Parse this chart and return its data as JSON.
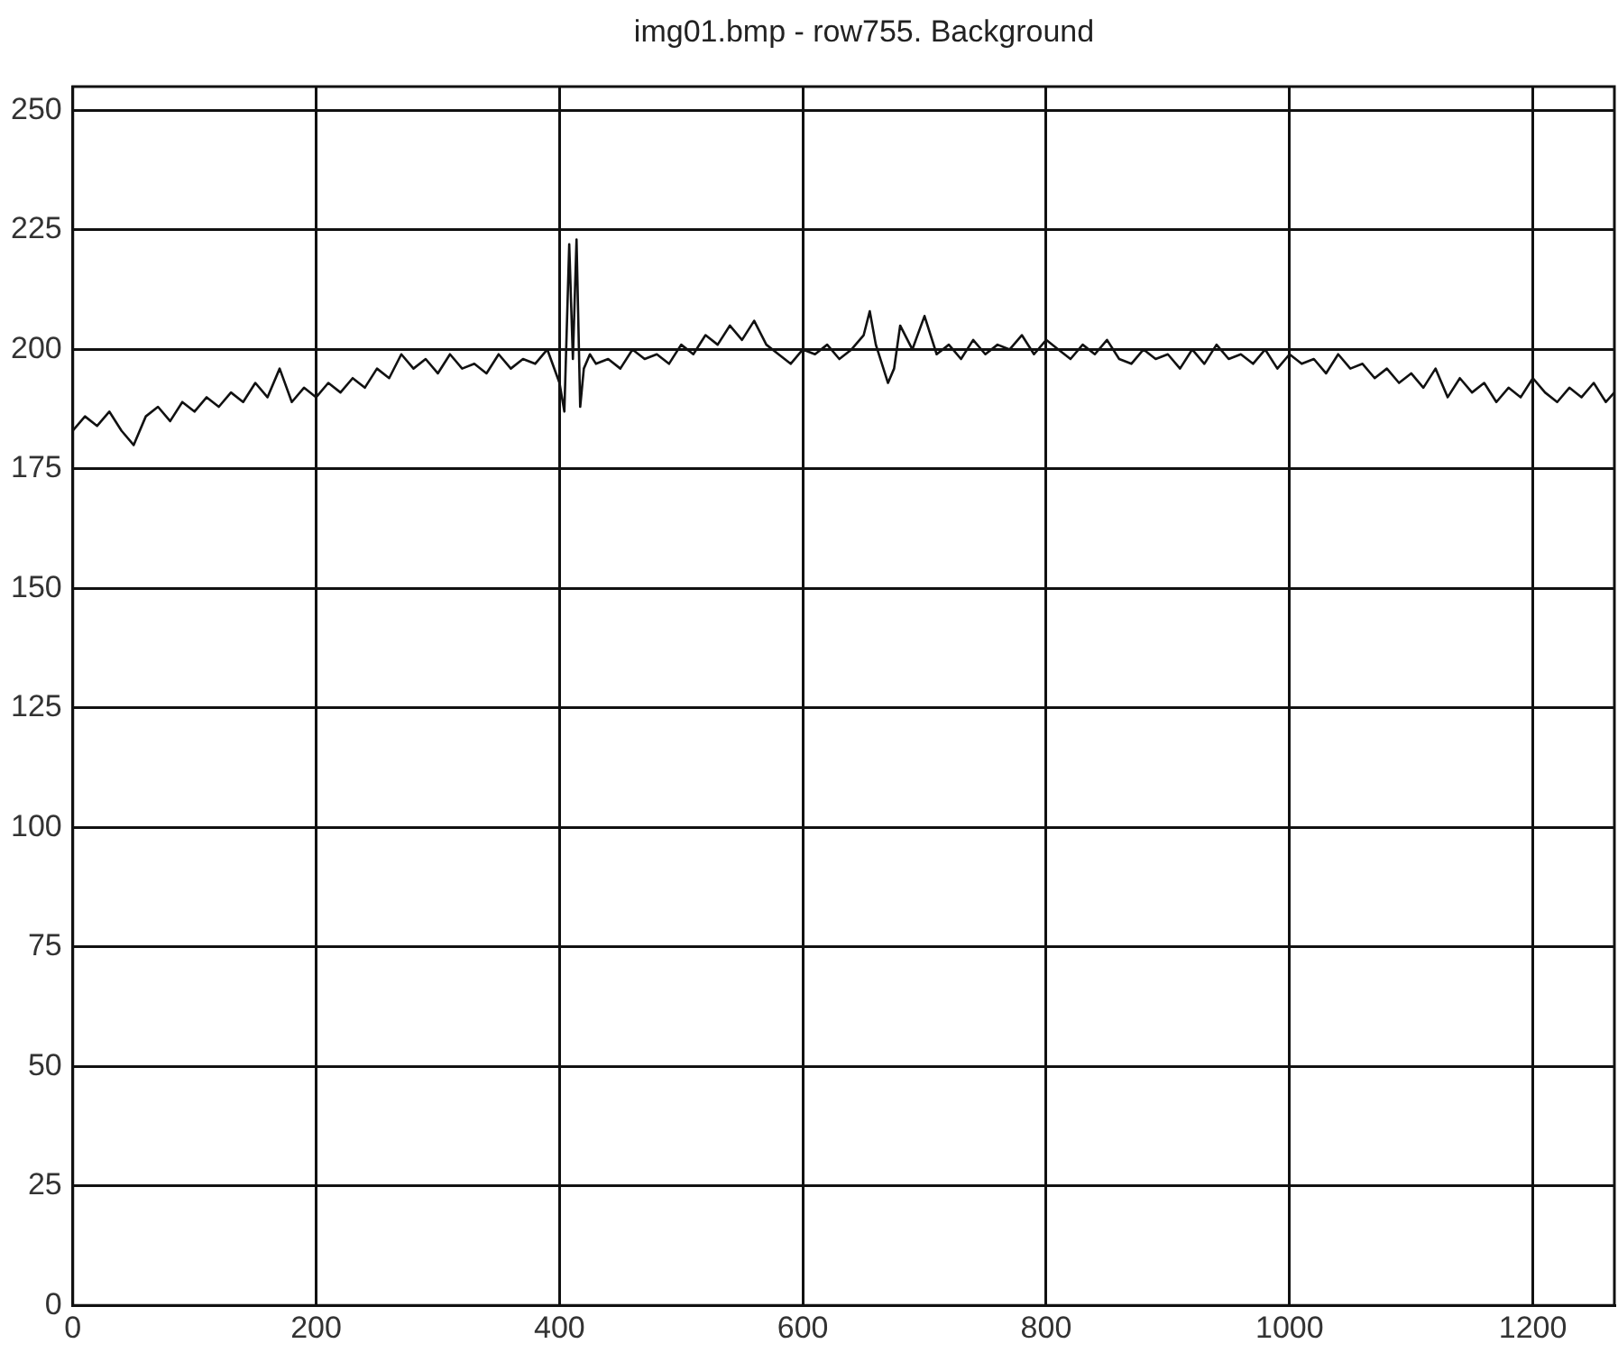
{
  "chart_data": {
    "type": "line",
    "title": "img01.bmp - row755. Background",
    "x": [
      0,
      10,
      20,
      30,
      40,
      50,
      60,
      70,
      80,
      90,
      100,
      110,
      120,
      130,
      140,
      150,
      160,
      170,
      180,
      190,
      200,
      210,
      220,
      230,
      240,
      250,
      260,
      270,
      280,
      290,
      300,
      310,
      320,
      330,
      340,
      350,
      360,
      370,
      380,
      390,
      400,
      404,
      408,
      411,
      414,
      417,
      420,
      425,
      430,
      440,
      450,
      460,
      470,
      480,
      490,
      500,
      510,
      520,
      530,
      540,
      550,
      560,
      570,
      580,
      590,
      600,
      610,
      620,
      630,
      640,
      650,
      655,
      660,
      670,
      675,
      680,
      690,
      700,
      710,
      720,
      730,
      740,
      750,
      760,
      770,
      780,
      790,
      800,
      810,
      820,
      830,
      840,
      850,
      860,
      870,
      880,
      890,
      900,
      910,
      920,
      930,
      940,
      950,
      960,
      970,
      980,
      990,
      1000,
      1010,
      1020,
      1030,
      1040,
      1050,
      1060,
      1070,
      1080,
      1090,
      1100,
      1110,
      1120,
      1130,
      1140,
      1150,
      1160,
      1170,
      1180,
      1190,
      1200,
      1210,
      1220,
      1230,
      1240,
      1250,
      1260,
      1267
    ],
    "values": [
      183,
      186,
      184,
      187,
      183,
      180,
      186,
      188,
      185,
      189,
      187,
      190,
      188,
      191,
      189,
      193,
      190,
      196,
      189,
      192,
      190,
      193,
      191,
      194,
      192,
      196,
      194,
      199,
      196,
      198,
      195,
      199,
      196,
      197,
      195,
      199,
      196,
      198,
      197,
      200,
      193,
      187,
      222,
      198,
      223,
      188,
      196,
      199,
      197,
      198,
      196,
      200,
      198,
      199,
      197,
      201,
      199,
      203,
      201,
      205,
      202,
      206,
      201,
      199,
      197,
      200,
      199,
      201,
      198,
      200,
      203,
      208,
      201,
      193,
      196,
      205,
      200,
      207,
      199,
      201,
      198,
      202,
      199,
      201,
      200,
      203,
      199,
      202,
      200,
      198,
      201,
      199,
      202,
      198,
      197,
      200,
      198,
      199,
      196,
      200,
      197,
      201,
      198,
      199,
      197,
      200,
      196,
      199,
      197,
      198,
      195,
      199,
      196,
      197,
      194,
      196,
      193,
      195,
      192,
      196,
      190,
      194,
      191,
      193,
      189,
      192,
      190,
      194,
      191,
      189,
      192,
      190,
      193,
      189,
      191
    ],
    "color": "#111111",
    "xlim": [
      0,
      1267
    ],
    "ylim": [
      0,
      255
    ],
    "xticks": [
      0,
      200,
      400,
      600,
      800,
      1000,
      1200
    ],
    "yticks": [
      0,
      25,
      50,
      75,
      100,
      125,
      150,
      175,
      200,
      225,
      250
    ],
    "grid": true,
    "legend": false,
    "marker": "none",
    "line_style": "solid"
  }
}
